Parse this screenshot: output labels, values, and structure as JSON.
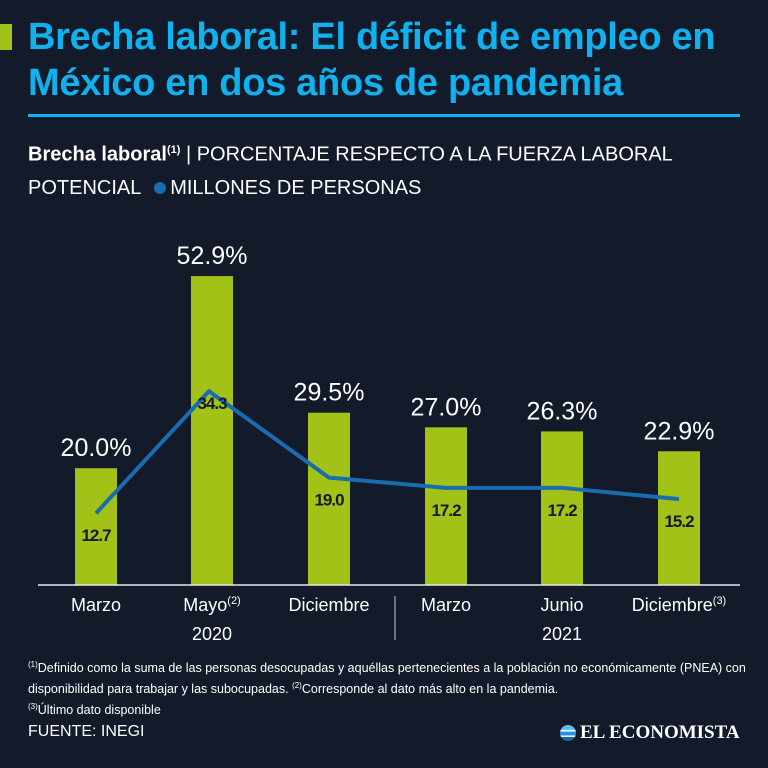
{
  "title": "Brecha laboral: El déficit de empleo en México en dos años de pandemia",
  "subtitle": {
    "bold": "Brecha laboral",
    "bold_sup": "(1)",
    "bar_label": "| PORCENTAJE RESPECTO A LA FUERZA LABORAL POTENCIAL",
    "line_label": "MILLONES DE PERSONAS"
  },
  "colors": {
    "background": "#131a2a",
    "title": "#0fb2ee",
    "bar": "#a3c217",
    "line": "#1a6cb0"
  },
  "chart_data": {
    "type": "bar",
    "categories": [
      "Marzo",
      "Mayo",
      "Diciembre",
      "Marzo",
      "Junio",
      "Diciembre"
    ],
    "category_sups": [
      "",
      "(2)",
      "",
      "",
      "",
      "(3)"
    ],
    "years": [
      {
        "label": "2020"
      },
      {
        "label": "2021"
      }
    ],
    "series": [
      {
        "type": "bar",
        "values": [
          20.0,
          52.9,
          29.5,
          27.0,
          26.3,
          22.9
        ],
        "labels": [
          "20.0%",
          "52.9%",
          "29.5%",
          "27.0%",
          "26.3%",
          "22.9%"
        ]
      },
      {
        "type": "line",
        "name": "MILLONES DE PERSONAS",
        "values": [
          12.7,
          34.3,
          19.0,
          17.2,
          17.2,
          15.2
        ],
        "labels": [
          "12.7",
          "34.3",
          "19.0",
          "17.2",
          "17.2",
          "15.2"
        ]
      }
    ],
    "ylim": [
      0,
      55
    ],
    "grid": false
  },
  "footnote": {
    "n1": "(1)",
    "t1": "Definido como la suma de las personas desocupadas y aquéllas pertenecientes a la población no económicamente (PNEA) con disponibilidad para trabajar y las subocupadas. ",
    "n2": "(2)",
    "t2": "Corresponde al dato más alto en la pandemia.",
    "n3": "(3)",
    "t3": "Último dato disponible"
  },
  "source": "FUENTE: INEGI",
  "logo": "EL ECONOMISTA"
}
